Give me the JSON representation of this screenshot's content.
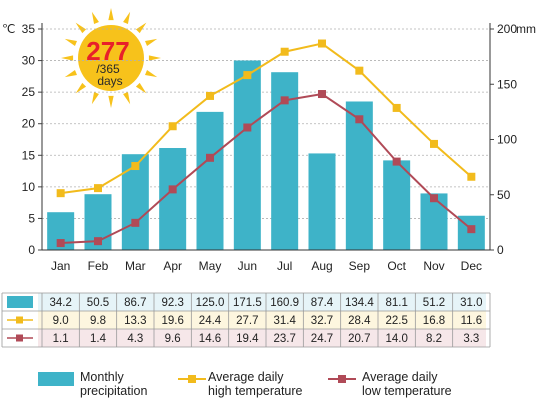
{
  "sunshine": {
    "value": "277",
    "denominator": "/365",
    "unit": "days"
  },
  "colors": {
    "bar": "#3eb3c8",
    "high": "#f2bb1c",
    "low": "#b04a57",
    "sun": "#f7c21b",
    "sun_text": "#e8202a",
    "grid": "#b0b0b0"
  },
  "chart_data": {
    "type": "bar",
    "categories": [
      "Jan",
      "Feb",
      "Mar",
      "Apr",
      "May",
      "Jun",
      "Jul",
      "Aug",
      "Sep",
      "Oct",
      "Nov",
      "Dec"
    ],
    "y_left": {
      "label": "℃",
      "ticks": [
        "0",
        "5",
        "10",
        "15",
        "20",
        "25",
        "30",
        "35"
      ],
      "ylim": [
        0,
        35
      ]
    },
    "y_right": {
      "label": "mm",
      "ticks": [
        "0",
        "50",
        "100",
        "150",
        "200"
      ],
      "ylim": [
        0,
        200
      ]
    },
    "grid": true,
    "series": [
      {
        "name": "Monthly\nprecipitation",
        "type": "bar",
        "axis": "right",
        "values": [
          34.2,
          50.5,
          86.7,
          92.3,
          125.0,
          171.5,
          160.9,
          87.4,
          134.4,
          81.1,
          51.2,
          31.0
        ],
        "labels": [
          "34.2",
          "50.5",
          "86.7",
          "92.3",
          "125.0",
          "171.5",
          "160.9",
          "87.4",
          "134.4",
          "81.1",
          "51.2",
          "31.0"
        ]
      },
      {
        "name": "Average daily\nhigh temperature",
        "type": "line",
        "axis": "left",
        "values": [
          9.0,
          9.8,
          13.3,
          19.6,
          24.4,
          27.7,
          31.4,
          32.7,
          28.4,
          22.5,
          16.8,
          11.6
        ],
        "labels": [
          "9.0",
          "9.8",
          "13.3",
          "19.6",
          "24.4",
          "27.7",
          "31.4",
          "32.7",
          "28.4",
          "22.5",
          "16.8",
          "11.6"
        ]
      },
      {
        "name": "Average daily\nlow temperature",
        "type": "line",
        "axis": "left",
        "values": [
          1.1,
          1.4,
          4.3,
          9.6,
          14.6,
          19.4,
          23.7,
          24.7,
          20.7,
          14.0,
          8.2,
          3.3
        ],
        "labels": [
          "1.1",
          "1.4",
          "4.3",
          "9.6",
          "14.6",
          "19.4",
          "23.7",
          "24.7",
          "20.7",
          "14.0",
          "8.2",
          "3.3"
        ]
      }
    ]
  }
}
